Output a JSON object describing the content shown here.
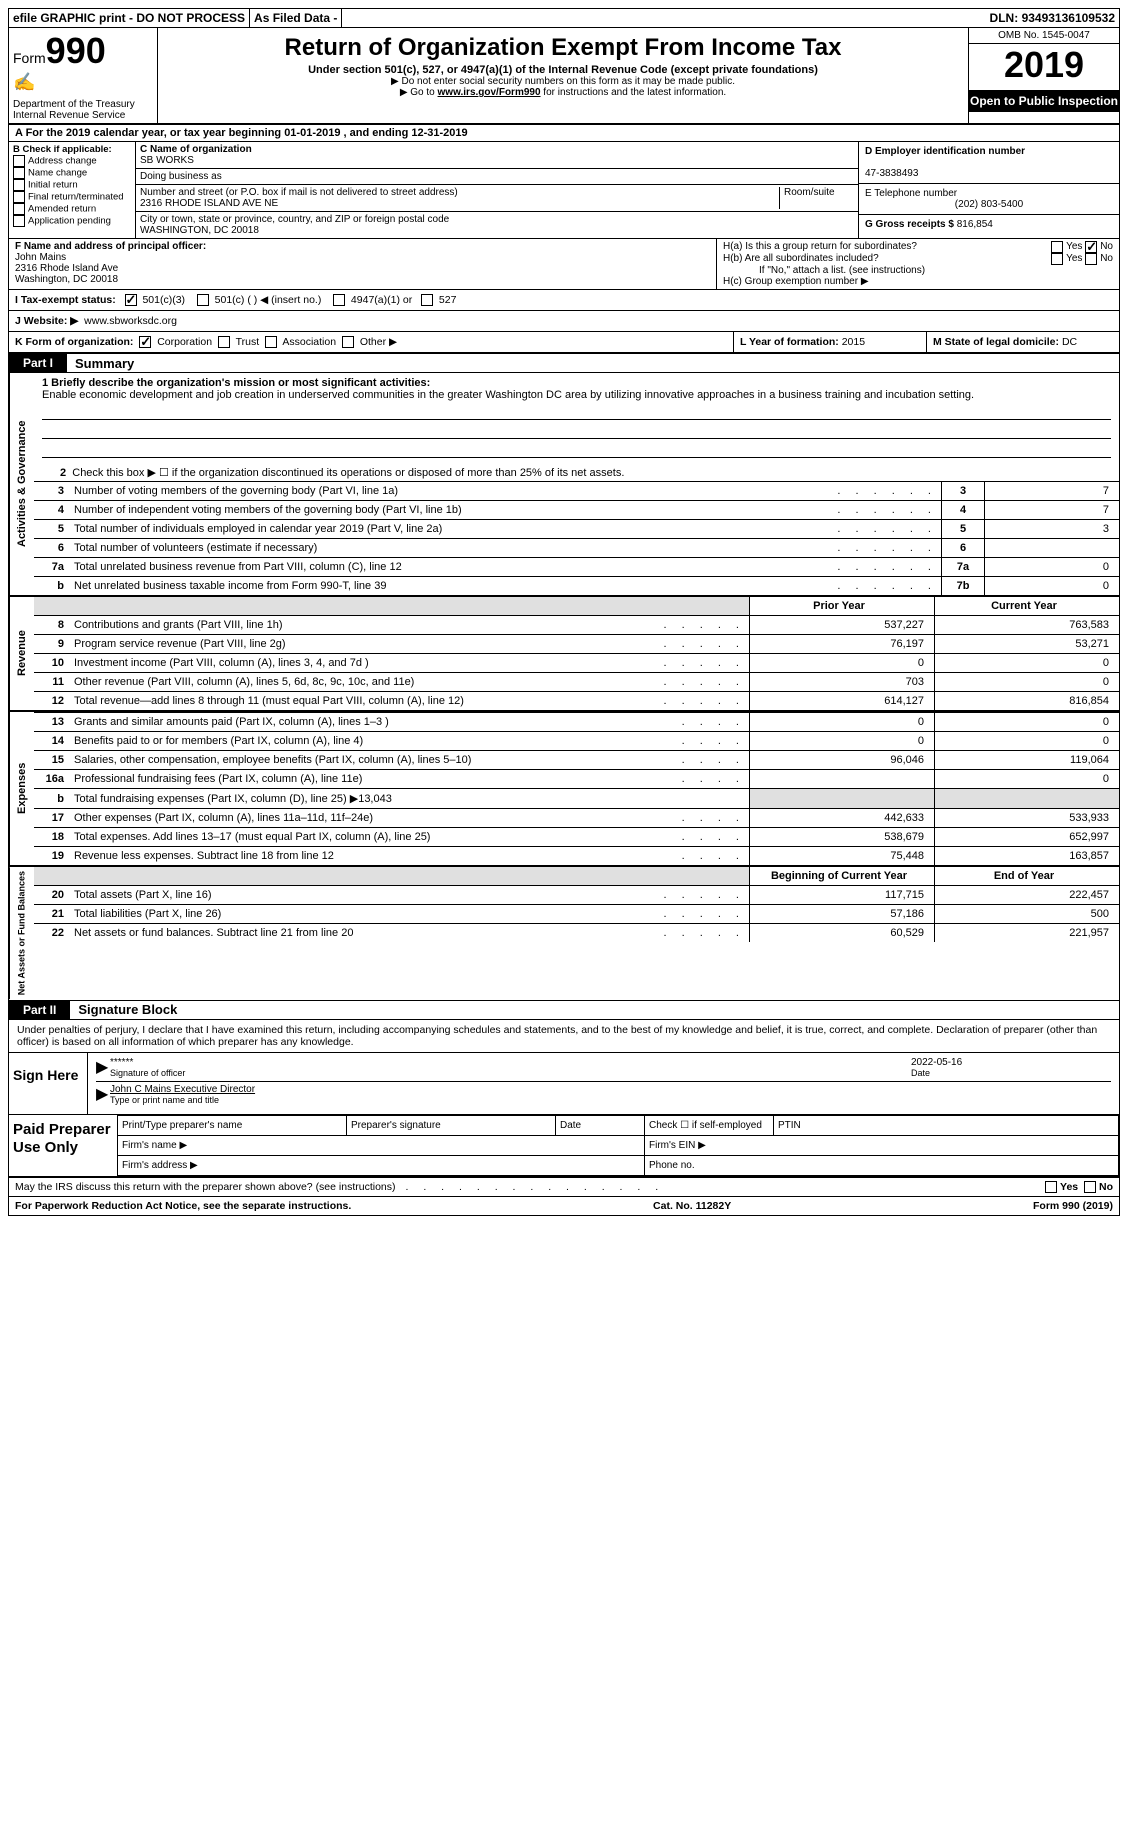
{
  "topbar": {
    "efile": "efile GRAPHIC print - DO NOT PROCESS",
    "filed": "As Filed Data -",
    "dln_label": "DLN:",
    "dln": "93493136109532"
  },
  "header": {
    "form_label": "Form",
    "form_num": "990",
    "dept": "Department of the Treasury\nInternal Revenue Service",
    "title": "Return of Organization Exempt From Income Tax",
    "subtitle": "Under section 501(c), 527, or 4947(a)(1) of the Internal Revenue Code (except private foundations)",
    "warn1": "▶ Do not enter social security numbers on this form as it may be made public.",
    "warn2_prefix": "▶ Go to ",
    "warn2_link": "www.irs.gov/Form990",
    "warn2_suffix": " for instructions and the latest information.",
    "omb": "OMB No. 1545-0047",
    "year": "2019",
    "inspect": "Open to Public Inspection"
  },
  "lineA": "A   For the 2019 calendar year, or tax year beginning 01-01-2019   , and ending 12-31-2019",
  "boxB": {
    "label": "B Check if applicable:",
    "opts": [
      "Address change",
      "Name change",
      "Initial return",
      "Final return/terminated",
      "Amended return",
      "Application pending"
    ]
  },
  "boxC": {
    "name_label": "C Name of organization",
    "name": "SB WORKS",
    "dba_label": "Doing business as",
    "street_label": "Number and street (or P.O. box if mail is not delivered to street address)",
    "room_label": "Room/suite",
    "street": "2316 RHODE ISLAND AVE NE",
    "city_label": "City or town, state or province, country, and ZIP or foreign postal code",
    "city": "WASHINGTON, DC  20018"
  },
  "boxD": {
    "label": "D Employer identification number",
    "value": "47-3838493"
  },
  "boxE": {
    "label": "E Telephone number",
    "value": "(202) 803-5400"
  },
  "boxG": {
    "label": "G Gross receipts $",
    "value": "816,854"
  },
  "boxF": {
    "label": "F  Name and address of principal officer:",
    "line1": "John Mains",
    "line2": "2316 Rhode Island Ave",
    "line3": "Washington, DC  20018"
  },
  "boxH": {
    "a": "H(a)  Is this a group return for subordinates?",
    "b": "H(b)  Are all subordinates included?",
    "b2": "If \"No,\" attach a list. (see instructions)",
    "c": "H(c)  Group exemption number ▶",
    "yes": "Yes",
    "no": "No"
  },
  "boxI": {
    "label": "I   Tax-exempt status:",
    "o1": "501(c)(3)",
    "o2": "501(c) (   ) ◀ (insert no.)",
    "o3": "4947(a)(1) or",
    "o4": "527"
  },
  "boxJ": {
    "label": "J   Website: ▶",
    "value": "www.sbworksdc.org"
  },
  "boxK": {
    "label": "K Form of organization:",
    "o1": "Corporation",
    "o2": "Trust",
    "o3": "Association",
    "o4": "Other ▶"
  },
  "boxL": {
    "label": "L Year of formation:",
    "value": "2015"
  },
  "boxM": {
    "label": "M State of legal domicile:",
    "value": "DC"
  },
  "part1": {
    "tab": "Part I",
    "title": "Summary"
  },
  "mission": {
    "line1": "1 Briefly describe the organization's mission or most significant activities:",
    "text": "Enable economic development and job creation in underserved communities in the greater Washington DC area by utilizing innovative approaches in a business training and incubation setting."
  },
  "line2": "Check this box ▶ ☐  if the organization discontinued its operations or disposed of more than 25% of its net assets.",
  "gov_lines": [
    {
      "n": "3",
      "desc": "Number of voting members of the governing body (Part VI, line 1a)",
      "ref": "3",
      "val": "7"
    },
    {
      "n": "4",
      "desc": "Number of independent voting members of the governing body (Part VI, line 1b)",
      "ref": "4",
      "val": "7"
    },
    {
      "n": "5",
      "desc": "Total number of individuals employed in calendar year 2019 (Part V, line 2a)",
      "ref": "5",
      "val": "3"
    },
    {
      "n": "6",
      "desc": "Total number of volunteers (estimate if necessary)",
      "ref": "6",
      "val": ""
    },
    {
      "n": "7a",
      "desc": "Total unrelated business revenue from Part VIII, column (C), line 12",
      "ref": "7a",
      "val": "0"
    },
    {
      "n": "b",
      "desc": "Net unrelated business taxable income from Form 990-T, line 39",
      "ref": "7b",
      "val": "0"
    }
  ],
  "yr_headers": {
    "prior": "Prior Year",
    "current": "Current Year"
  },
  "rev_lines": [
    {
      "n": "8",
      "desc": "Contributions and grants (Part VIII, line 1h)",
      "p": "537,227",
      "c": "763,583"
    },
    {
      "n": "9",
      "desc": "Program service revenue (Part VIII, line 2g)",
      "p": "76,197",
      "c": "53,271"
    },
    {
      "n": "10",
      "desc": "Investment income (Part VIII, column (A), lines 3, 4, and 7d )",
      "p": "0",
      "c": "0"
    },
    {
      "n": "11",
      "desc": "Other revenue (Part VIII, column (A), lines 5, 6d, 8c, 9c, 10c, and 11e)",
      "p": "703",
      "c": "0"
    },
    {
      "n": "12",
      "desc": "Total revenue—add lines 8 through 11 (must equal Part VIII, column (A), line 12)",
      "p": "614,127",
      "c": "816,854"
    }
  ],
  "exp_lines": [
    {
      "n": "13",
      "desc": "Grants and similar amounts paid (Part IX, column (A), lines 1–3 )",
      "p": "0",
      "c": "0"
    },
    {
      "n": "14",
      "desc": "Benefits paid to or for members (Part IX, column (A), line 4)",
      "p": "0",
      "c": "0"
    },
    {
      "n": "15",
      "desc": "Salaries, other compensation, employee benefits (Part IX, column (A), lines 5–10)",
      "p": "96,046",
      "c": "119,064"
    },
    {
      "n": "16a",
      "desc": "Professional fundraising fees (Part IX, column (A), line 11e)",
      "p": "",
      "c": "0"
    },
    {
      "n": "b",
      "desc": "Total fundraising expenses (Part IX, column (D), line 25) ▶13,043",
      "p": "grey",
      "c": "grey"
    },
    {
      "n": "17",
      "desc": "Other expenses (Part IX, column (A), lines 11a–11d, 11f–24e)",
      "p": "442,633",
      "c": "533,933"
    },
    {
      "n": "18",
      "desc": "Total expenses. Add lines 13–17 (must equal Part IX, column (A), line 25)",
      "p": "538,679",
      "c": "652,997"
    },
    {
      "n": "19",
      "desc": "Revenue less expenses. Subtract line 18 from line 12",
      "p": "75,448",
      "c": "163,857"
    }
  ],
  "bal_headers": {
    "begin": "Beginning of Current Year",
    "end": "End of Year"
  },
  "bal_lines": [
    {
      "n": "20",
      "desc": "Total assets (Part X, line 16)",
      "p": "117,715",
      "c": "222,457"
    },
    {
      "n": "21",
      "desc": "Total liabilities (Part X, line 26)",
      "p": "57,186",
      "c": "500"
    },
    {
      "n": "22",
      "desc": "Net assets or fund balances. Subtract line 21 from line 20",
      "p": "60,529",
      "c": "221,957"
    }
  ],
  "side_labels": {
    "gov": "Activities & Governance",
    "rev": "Revenue",
    "exp": "Expenses",
    "bal": "Net Assets or Fund Balances"
  },
  "part2": {
    "tab": "Part II",
    "title": "Signature Block"
  },
  "sig_declaration": "Under penalties of perjury, I declare that I have examined this return, including accompanying schedules and statements, and to the best of my knowledge and belief, it is true, correct, and complete. Declaration of preparer (other than officer) is based on all information of which preparer has any knowledge.",
  "sign": {
    "label": "Sign Here",
    "stars": "******",
    "sig_of_officer": "Signature of officer",
    "date": "2022-05-16",
    "date_label": "Date",
    "name_title": "John C Mains Executive Director",
    "name_label": "Type or print name and title"
  },
  "preparer": {
    "label": "Paid Preparer Use Only",
    "c1": "Print/Type preparer's name",
    "c2": "Preparer's signature",
    "c3": "Date",
    "c4": "Check ☐ if self-employed",
    "c5": "PTIN",
    "firm_name": "Firm's name   ▶",
    "firm_ein": "Firm's EIN ▶",
    "firm_addr": "Firm's address ▶",
    "phone": "Phone no."
  },
  "discuss": "May the IRS discuss this return with the preparer shown above? (see instructions)",
  "footer": {
    "left": "For Paperwork Reduction Act Notice, see the separate instructions.",
    "mid": "Cat. No. 11282Y",
    "right_pre": "Form ",
    "right_form": "990",
    "right_yr": " (2019)"
  }
}
